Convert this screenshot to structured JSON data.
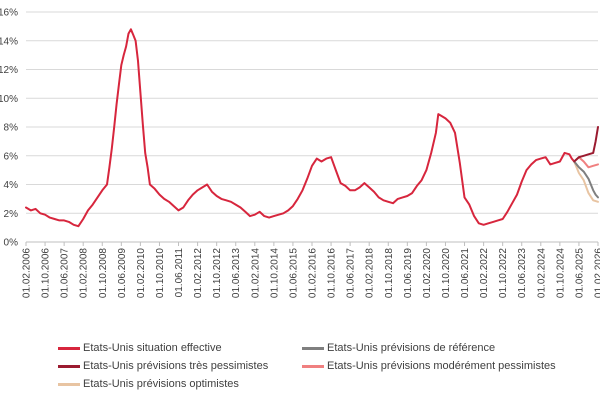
{
  "chart_data": {
    "type": "line",
    "title": "",
    "xlabel": "",
    "ylabel": "",
    "ylim": [
      0,
      16
    ],
    "y_ticks": [
      "0%",
      "2%",
      "4%",
      "6%",
      "8%",
      "10%",
      "12%",
      "14%",
      "16%"
    ],
    "y_tick_values": [
      0,
      2,
      4,
      6,
      8,
      10,
      12,
      14,
      16
    ],
    "x_ticks": [
      "01.02.2006",
      "01.10.2006",
      "01.06.2007",
      "01.02.2008",
      "01.10.2008",
      "01.06.2009",
      "01.02.2010",
      "01.10.2010",
      "01.06.2011",
      "01.02.2012",
      "01.10.2012",
      "01.06.2013",
      "01.02.2014",
      "01.10.2014",
      "01.06.2015",
      "01.02.2016",
      "01.10.2016",
      "01.06.2017",
      "01.02.2018",
      "01.10.2018",
      "01.06.2019",
      "01.02.2020",
      "01.10.2020",
      "01.06.2021",
      "01.02.2022",
      "01.10.2022",
      "01.06.2023",
      "01.02.2024",
      "01.10.2024",
      "01.06.2025",
      "01.02.2026"
    ],
    "x_tick_dates": [
      "2006-02",
      "2006-10",
      "2007-06",
      "2008-02",
      "2008-10",
      "2009-06",
      "2010-02",
      "2010-10",
      "2011-06",
      "2012-02",
      "2012-10",
      "2013-06",
      "2014-02",
      "2014-10",
      "2015-06",
      "2016-02",
      "2016-10",
      "2017-06",
      "2018-02",
      "2018-10",
      "2019-06",
      "2020-02",
      "2020-10",
      "2021-06",
      "2022-02",
      "2022-10",
      "2023-06",
      "2024-02",
      "2024-10",
      "2025-06",
      "2026-02"
    ],
    "x_range": [
      "2006-02",
      "2026-02"
    ],
    "grid": "horizontal",
    "legend_position": "bottom",
    "series": [
      {
        "name": "Etats-Unis situation effective",
        "color": "#D7263D",
        "points": [
          [
            "2006-02",
            2.4
          ],
          [
            "2006-04",
            2.2
          ],
          [
            "2006-06",
            2.3
          ],
          [
            "2006-08",
            2.0
          ],
          [
            "2006-10",
            1.9
          ],
          [
            "2006-12",
            1.7
          ],
          [
            "2007-02",
            1.6
          ],
          [
            "2007-04",
            1.5
          ],
          [
            "2007-06",
            1.5
          ],
          [
            "2007-08",
            1.4
          ],
          [
            "2007-10",
            1.2
          ],
          [
            "2007-12",
            1.1
          ],
          [
            "2008-02",
            1.6
          ],
          [
            "2008-04",
            2.2
          ],
          [
            "2008-06",
            2.6
          ],
          [
            "2008-08",
            3.1
          ],
          [
            "2008-10",
            3.6
          ],
          [
            "2008-12",
            4.0
          ],
          [
            "2009-01",
            5.2
          ],
          [
            "2009-02",
            6.5
          ],
          [
            "2009-03",
            8.0
          ],
          [
            "2009-04",
            9.6
          ],
          [
            "2009-05",
            11.0
          ],
          [
            "2009-06",
            12.3
          ],
          [
            "2009-07",
            13.0
          ],
          [
            "2009-08",
            13.6
          ],
          [
            "2009-09",
            14.5
          ],
          [
            "2009-10",
            14.8
          ],
          [
            "2009-11",
            14.4
          ],
          [
            "2009-12",
            14.0
          ],
          [
            "2010-01",
            12.6
          ],
          [
            "2010-02",
            10.4
          ],
          [
            "2010-03",
            8.2
          ],
          [
            "2010-04",
            6.2
          ],
          [
            "2010-05",
            5.2
          ],
          [
            "2010-06",
            4.0
          ],
          [
            "2010-08",
            3.7
          ],
          [
            "2010-10",
            3.3
          ],
          [
            "2010-12",
            3.0
          ],
          [
            "2011-02",
            2.8
          ],
          [
            "2011-04",
            2.5
          ],
          [
            "2011-06",
            2.2
          ],
          [
            "2011-08",
            2.4
          ],
          [
            "2011-10",
            2.9
          ],
          [
            "2011-12",
            3.3
          ],
          [
            "2012-02",
            3.6
          ],
          [
            "2012-04",
            3.8
          ],
          [
            "2012-06",
            4.0
          ],
          [
            "2012-08",
            3.5
          ],
          [
            "2012-10",
            3.2
          ],
          [
            "2012-12",
            3.0
          ],
          [
            "2013-02",
            2.9
          ],
          [
            "2013-04",
            2.8
          ],
          [
            "2013-06",
            2.6
          ],
          [
            "2013-08",
            2.4
          ],
          [
            "2013-10",
            2.1
          ],
          [
            "2013-12",
            1.8
          ],
          [
            "2014-02",
            1.9
          ],
          [
            "2014-04",
            2.1
          ],
          [
            "2014-06",
            1.8
          ],
          [
            "2014-08",
            1.7
          ],
          [
            "2014-10",
            1.8
          ],
          [
            "2014-12",
            1.9
          ],
          [
            "2015-02",
            2.0
          ],
          [
            "2015-04",
            2.2
          ],
          [
            "2015-06",
            2.5
          ],
          [
            "2015-08",
            3.0
          ],
          [
            "2015-10",
            3.6
          ],
          [
            "2015-12",
            4.4
          ],
          [
            "2016-02",
            5.3
          ],
          [
            "2016-04",
            5.8
          ],
          [
            "2016-06",
            5.6
          ],
          [
            "2016-08",
            5.8
          ],
          [
            "2016-10",
            5.9
          ],
          [
            "2016-12",
            5.0
          ],
          [
            "2017-02",
            4.1
          ],
          [
            "2017-04",
            3.9
          ],
          [
            "2017-06",
            3.6
          ],
          [
            "2017-08",
            3.6
          ],
          [
            "2017-10",
            3.8
          ],
          [
            "2017-12",
            4.1
          ],
          [
            "2018-02",
            3.8
          ],
          [
            "2018-04",
            3.5
          ],
          [
            "2018-06",
            3.1
          ],
          [
            "2018-08",
            2.9
          ],
          [
            "2018-10",
            2.8
          ],
          [
            "2018-12",
            2.7
          ],
          [
            "2019-02",
            3.0
          ],
          [
            "2019-04",
            3.1
          ],
          [
            "2019-06",
            3.2
          ],
          [
            "2019-08",
            3.4
          ],
          [
            "2019-10",
            3.9
          ],
          [
            "2019-12",
            4.3
          ],
          [
            "2020-02",
            5.0
          ],
          [
            "2020-04",
            6.2
          ],
          [
            "2020-06",
            7.6
          ],
          [
            "2020-07",
            8.9
          ],
          [
            "2020-08",
            8.8
          ],
          [
            "2020-10",
            8.6
          ],
          [
            "2020-12",
            8.3
          ],
          [
            "2021-02",
            7.6
          ],
          [
            "2021-04",
            5.5
          ],
          [
            "2021-06",
            3.1
          ],
          [
            "2021-08",
            2.6
          ],
          [
            "2021-10",
            1.8
          ],
          [
            "2021-12",
            1.3
          ],
          [
            "2022-02",
            1.2
          ],
          [
            "2022-04",
            1.3
          ],
          [
            "2022-06",
            1.4
          ],
          [
            "2022-08",
            1.5
          ],
          [
            "2022-10",
            1.6
          ],
          [
            "2022-12",
            2.1
          ],
          [
            "2023-02",
            2.7
          ],
          [
            "2023-04",
            3.3
          ],
          [
            "2023-06",
            4.2
          ],
          [
            "2023-08",
            5.0
          ],
          [
            "2023-10",
            5.4
          ],
          [
            "2023-12",
            5.7
          ],
          [
            "2024-02",
            5.8
          ],
          [
            "2024-04",
            5.9
          ],
          [
            "2024-06",
            5.4
          ],
          [
            "2024-08",
            5.5
          ],
          [
            "2024-10",
            5.6
          ],
          [
            "2024-12",
            6.2
          ],
          [
            "2025-02",
            6.1
          ],
          [
            "2025-03",
            5.8
          ],
          [
            "2025-04",
            5.6
          ]
        ]
      },
      {
        "name": "Etats-Unis prévisions de référence",
        "color": "#7F7F7F",
        "points": [
          [
            "2025-04",
            5.6
          ],
          [
            "2025-06",
            5.2
          ],
          [
            "2025-08",
            4.9
          ],
          [
            "2025-10",
            4.4
          ],
          [
            "2025-12",
            3.6
          ],
          [
            "2026-01",
            3.3
          ],
          [
            "2026-02",
            3.1
          ]
        ]
      },
      {
        "name": "Etats-Unis prévisions très pessimistes",
        "color": "#9B1B30",
        "points": [
          [
            "2025-04",
            5.6
          ],
          [
            "2025-06",
            5.9
          ],
          [
            "2025-08",
            6.0
          ],
          [
            "2025-10",
            6.1
          ],
          [
            "2025-12",
            6.2
          ],
          [
            "2026-01",
            7.0
          ],
          [
            "2026-02",
            8.0
          ]
        ]
      },
      {
        "name": "Etats-Unis prévisions modérément pessimistes",
        "color": "#F08080",
        "points": [
          [
            "2025-04",
            5.6
          ],
          [
            "2025-06",
            5.9
          ],
          [
            "2025-08",
            5.6
          ],
          [
            "2025-10",
            5.2
          ],
          [
            "2025-12",
            5.3
          ],
          [
            "2026-02",
            5.4
          ]
        ]
      },
      {
        "name": "Etats-Unis prévisions optimistes",
        "color": "#E8C4A2",
        "points": [
          [
            "2025-04",
            5.6
          ],
          [
            "2025-06",
            4.8
          ],
          [
            "2025-08",
            4.3
          ],
          [
            "2025-10",
            3.4
          ],
          [
            "2025-12",
            2.9
          ],
          [
            "2026-02",
            2.8
          ]
        ]
      }
    ]
  }
}
